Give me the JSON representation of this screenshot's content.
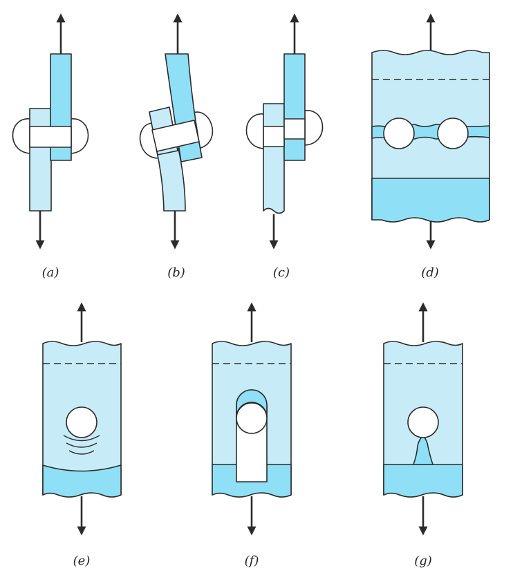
{
  "colors": {
    "light_blue": "#c7ecf8",
    "mid_blue": "#8fe0f6",
    "outline": "#2b2b2b",
    "background": "#ffffff"
  },
  "panels": [
    {
      "id": "a",
      "label": "(a)"
    },
    {
      "id": "b",
      "label": "(b)"
    },
    {
      "id": "c",
      "label": "(c)"
    },
    {
      "id": "d",
      "label": "(d)"
    },
    {
      "id": "e",
      "label": "(e)"
    },
    {
      "id": "f",
      "label": "(f)"
    },
    {
      "id": "g",
      "label": "(g)"
    }
  ]
}
